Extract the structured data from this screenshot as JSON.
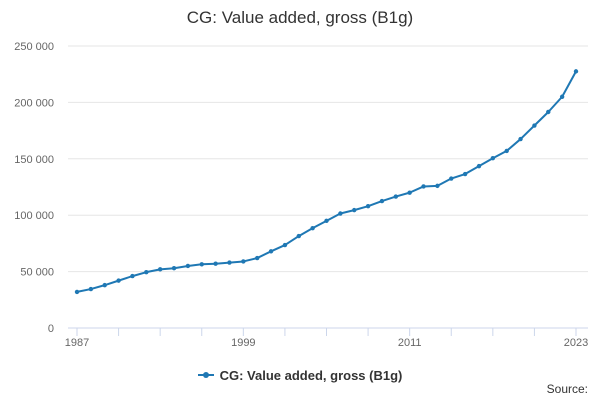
{
  "colors": {
    "series": "#1f78b4",
    "grid": "#e6e6e6",
    "axis": "#ccd6eb"
  },
  "source_label": "Source:",
  "chart_data": {
    "type": "line",
    "title": "CG: Value added, gross (B1g)",
    "xlabel": "",
    "ylabel": "",
    "xlim": [
      1987,
      2023
    ],
    "ylim": [
      0,
      250000
    ],
    "yticks": [
      0,
      50000,
      100000,
      150000,
      200000,
      250000
    ],
    "ytick_labels": [
      "0",
      "50 000",
      "100 000",
      "150 000",
      "200 000",
      "250 000"
    ],
    "xtick_labels": [
      "1987",
      "1999",
      "2011",
      "2023"
    ],
    "xticks": [
      1987,
      1999,
      2011,
      2023
    ],
    "grid": true,
    "legend": "bottom-center",
    "x": [
      1987,
      1988,
      1989,
      1990,
      1991,
      1992,
      1993,
      1994,
      1995,
      1996,
      1997,
      1998,
      1999,
      2000,
      2001,
      2002,
      2003,
      2004,
      2005,
      2006,
      2007,
      2008,
      2009,
      2010,
      2011,
      2012,
      2013,
      2014,
      2015,
      2016,
      2017,
      2018,
      2019,
      2020,
      2021,
      2022,
      2023
    ],
    "series": [
      {
        "name": "CG: Value added, gross (B1g)",
        "values": [
          32000,
          34500,
          38000,
          42000,
          46000,
          49500,
          52000,
          53000,
          55000,
          56500,
          57000,
          58000,
          59000,
          62000,
          68000,
          73500,
          81500,
          88500,
          95000,
          101500,
          104500,
          108000,
          112500,
          116500,
          120000,
          125500,
          126000,
          132500,
          136500,
          143500,
          150500,
          157000,
          167500,
          179500,
          191500,
          205000,
          227500
        ]
      }
    ]
  }
}
